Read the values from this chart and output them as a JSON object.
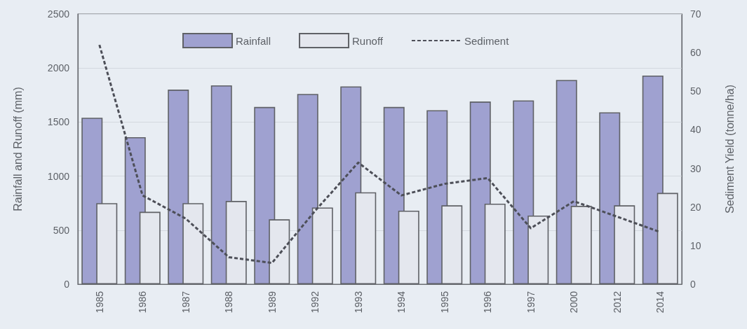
{
  "chart_data": {
    "type": "bar",
    "categories": [
      "1985",
      "1986",
      "1987",
      "1988",
      "1989",
      "1992",
      "1993",
      "1994",
      "1995",
      "1996",
      "1997",
      "2000",
      "2012",
      "2014"
    ],
    "series": [
      {
        "name": "Rainfall",
        "color": "#9fa1d0",
        "values": [
          1540,
          1360,
          1800,
          1840,
          1640,
          1760,
          1830,
          1640,
          1610,
          1690,
          1700,
          1890,
          1590,
          1930
        ]
      },
      {
        "name": "Runoff",
        "color": "#e4e7ee",
        "values": [
          750,
          670,
          750,
          770,
          600,
          710,
          850,
          680,
          730,
          745,
          635,
          725,
          730,
          845
        ]
      },
      {
        "name": "Sediment",
        "type": "line",
        "axis": "y2",
        "color": "#4d4f58",
        "values": [
          62,
          23,
          17,
          7,
          5.5,
          19,
          31.5,
          23,
          26,
          27.5,
          14.5,
          21.5,
          17.5,
          13.5
        ]
      }
    ],
    "ylabel": "Rainfall and Runoff (mm)",
    "y2label": "Sediment Yield (tonne/ha)",
    "ylim": [
      0,
      2500
    ],
    "yticks": [
      0,
      500,
      1000,
      1500,
      2000,
      2500
    ],
    "y2lim": [
      0,
      70
    ],
    "y2ticks": [
      0,
      10,
      20,
      30,
      40,
      50,
      60,
      70
    ],
    "grid": "y",
    "legend": "top",
    "marker": "none",
    "line_style": "dashed"
  }
}
